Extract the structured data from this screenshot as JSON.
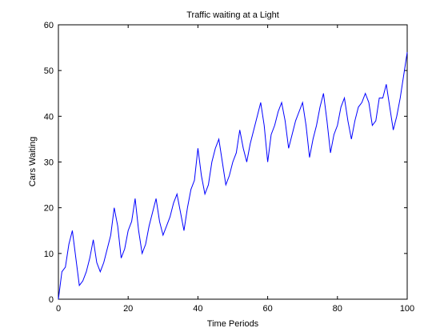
{
  "chart_data": {
    "type": "line",
    "title": "Traffic waiting at a Light",
    "xlabel": "Time Periods",
    "ylabel": "Cars Waiting",
    "xlim": [
      0,
      100
    ],
    "ylim": [
      0,
      60
    ],
    "xticks": [
      "0",
      "20",
      "40",
      "60",
      "80",
      "100"
    ],
    "yticks": [
      "0",
      "10",
      "20",
      "30",
      "40",
      "50",
      "60"
    ],
    "grid": false,
    "line_color": "#0000ff",
    "x": [
      0,
      1,
      2,
      3,
      4,
      5,
      6,
      7,
      8,
      9,
      10,
      11,
      12,
      13,
      14,
      15,
      16,
      17,
      18,
      19,
      20,
      21,
      22,
      23,
      24,
      25,
      26,
      27,
      28,
      29,
      30,
      31,
      32,
      33,
      34,
      35,
      36,
      37,
      38,
      39,
      40,
      41,
      42,
      43,
      44,
      45,
      46,
      47,
      48,
      49,
      50,
      51,
      52,
      53,
      54,
      55,
      56,
      57,
      58,
      59,
      60,
      61,
      62,
      63,
      64,
      65,
      66,
      67,
      68,
      69,
      70,
      71,
      72,
      73,
      74,
      75,
      76,
      77,
      78,
      79,
      80,
      81,
      82,
      83,
      84,
      85,
      86,
      87,
      88,
      89,
      90,
      91,
      92,
      93,
      94,
      95,
      96,
      97,
      98,
      99,
      100
    ],
    "y": [
      0,
      6,
      7,
      12,
      15,
      9,
      3,
      4,
      6,
      9,
      13,
      8,
      6,
      8,
      11,
      14,
      20,
      16,
      9,
      11,
      15,
      17,
      22,
      15,
      10,
      12,
      16,
      19,
      22,
      17,
      14,
      16,
      18,
      21,
      23,
      19,
      15,
      20,
      24,
      26,
      33,
      27,
      23,
      25,
      30,
      33,
      35,
      30,
      25,
      27,
      30,
      32,
      37,
      33,
      30,
      34,
      37,
      40,
      43,
      38,
      30,
      36,
      38,
      41,
      43,
      39,
      33,
      36,
      39,
      41,
      43,
      38,
      31,
      35,
      38,
      42,
      45,
      39,
      32,
      36,
      38,
      42,
      44,
      39,
      35,
      39,
      42,
      43,
      45,
      43,
      38,
      39,
      44,
      44,
      47,
      42,
      37,
      40,
      44,
      49,
      54
    ]
  }
}
